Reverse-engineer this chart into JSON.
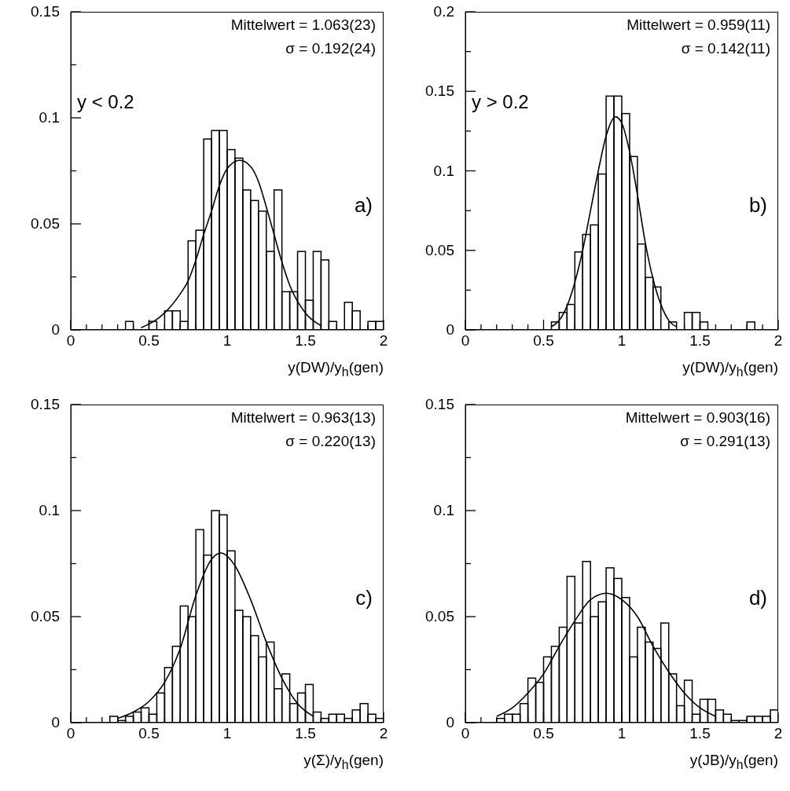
{
  "chart_data": [
    {
      "type": "histogram",
      "xlabel": "y(DW)/y$_{h}$(gen)",
      "annotations": [
        "Mittelwert = 1.063(23)",
        "σ = 0.192(24)",
        "y < 0.2",
        "a)"
      ],
      "bins": [
        0,
        0.05,
        0.1,
        0.15,
        0.2,
        0.25,
        0.3,
        0.35,
        0.4,
        0.45,
        0.5,
        0.55,
        0.6,
        0.65,
        0.7,
        0.75,
        0.8,
        0.85,
        0.9,
        0.95,
        1,
        1.05,
        1.1,
        1.15,
        1.2,
        1.25,
        1.3,
        1.35,
        1.4,
        1.45,
        1.5,
        1.55,
        1.6,
        1.65,
        1.7,
        1.75,
        1.8,
        1.85,
        1.9,
        1.95,
        2
      ],
      "series": [
        {
          "color": "#000000",
          "values": [
            0,
            0,
            0,
            0,
            0,
            0,
            0,
            0.004,
            0,
            0,
            0.004,
            0,
            0.009,
            0.009,
            0.004,
            0.042,
            0.047,
            0.09,
            0.094,
            0.094,
            0.085,
            0.081,
            0.066,
            0.061,
            0.056,
            0.037,
            0.066,
            0.018,
            0.018,
            0.037,
            0.014,
            0.037,
            0.033,
            0.004,
            0,
            0.013,
            0.009,
            0,
            0.004,
            0.004
          ]
        },
        {
          "type": "line",
          "color": "#000000",
          "x": [
            0.45,
            0.6,
            0.7,
            0.75,
            0.8,
            0.85,
            0.9,
            0.95,
            1.0,
            1.08,
            1.15,
            1.2,
            1.25,
            1.3,
            1.35,
            1.4,
            1.5,
            1.6
          ],
          "values": [
            0.001,
            0.008,
            0.017,
            0.023,
            0.033,
            0.045,
            0.056,
            0.068,
            0.076,
            0.08,
            0.077,
            0.07,
            0.058,
            0.045,
            0.032,
            0.021,
            0.008,
            0.002
          ]
        }
      ],
      "xlim": [
        0,
        2
      ],
      "xticks": [
        0,
        {
          "value": 0.1,
          "label": null
        },
        {
          "value": 0.2,
          "label": null
        },
        {
          "value": 0.3,
          "label": null
        },
        {
          "value": 0.4,
          "label": null
        },
        0.5,
        {
          "value": 0.6,
          "label": null
        },
        {
          "value": 0.7,
          "label": null
        },
        {
          "value": 0.8,
          "label": null
        },
        {
          "value": 0.9,
          "label": null
        },
        1,
        {
          "value": 1.1,
          "label": null
        },
        {
          "value": 1.2,
          "label": null
        },
        {
          "value": 1.3,
          "label": null
        },
        {
          "value": 1.4,
          "label": null
        },
        1.5,
        {
          "value": 1.6,
          "label": null
        },
        {
          "value": 1.7,
          "label": null
        },
        {
          "value": 1.8,
          "label": null
        },
        {
          "value": 1.9,
          "label": null
        },
        2
      ],
      "ylim": [
        0,
        0.15
      ],
      "yticks": [
        0,
        {
          "value": 0.025,
          "label": null
        },
        0.05,
        {
          "value": 0.075,
          "label": null
        },
        0.1,
        {
          "value": 0.125,
          "label": null
        },
        0.15
      ]
    },
    {
      "type": "histogram",
      "xlabel": "y(DW)/y$_{h}$(gen)",
      "annotations": [
        "Mittelwert = 0.959(11)",
        "σ = 0.142(11)",
        "y > 0.2",
        "b)"
      ],
      "bins": [
        0,
        0.05,
        0.1,
        0.15,
        0.2,
        0.25,
        0.3,
        0.35,
        0.4,
        0.45,
        0.5,
        0.55,
        0.6,
        0.65,
        0.7,
        0.75,
        0.8,
        0.85,
        0.9,
        0.95,
        1,
        1.05,
        1.1,
        1.15,
        1.2,
        1.25,
        1.3,
        1.35,
        1.4,
        1.45,
        1.5,
        1.55,
        1.6,
        1.65,
        1.7,
        1.75,
        1.8,
        1.85,
        1.9,
        1.95,
        2
      ],
      "series": [
        {
          "color": "#000000",
          "values": [
            0,
            0,
            0,
            0,
            0,
            0,
            0,
            0,
            0,
            0,
            0,
            0.005,
            0.011,
            0.016,
            0.049,
            0.06,
            0.066,
            0.098,
            0.147,
            0.147,
            0.136,
            0.109,
            0.054,
            0.033,
            0.027,
            0,
            0.005,
            0,
            0.011,
            0.011,
            0.005,
            0,
            0,
            0,
            0,
            0,
            0.005,
            0,
            0,
            0
          ]
        },
        {
          "type": "line",
          "color": "#000000",
          "x": [
            0.55,
            0.6,
            0.65,
            0.7,
            0.75,
            0.8,
            0.85,
            0.9,
            0.96,
            1.0,
            1.05,
            1.1,
            1.15,
            1.2,
            1.25,
            1.3,
            1.35
          ],
          "values": [
            0.002,
            0.006,
            0.015,
            0.03,
            0.05,
            0.075,
            0.1,
            0.122,
            0.134,
            0.13,
            0.112,
            0.085,
            0.055,
            0.032,
            0.016,
            0.006,
            0.002
          ]
        }
      ],
      "xlim": [
        0,
        2
      ],
      "xticks": [
        0,
        {
          "value": 0.1,
          "label": null
        },
        {
          "value": 0.2,
          "label": null
        },
        {
          "value": 0.3,
          "label": null
        },
        {
          "value": 0.4,
          "label": null
        },
        0.5,
        {
          "value": 0.6,
          "label": null
        },
        {
          "value": 0.7,
          "label": null
        },
        {
          "value": 0.8,
          "label": null
        },
        {
          "value": 0.9,
          "label": null
        },
        1,
        {
          "value": 1.1,
          "label": null
        },
        {
          "value": 1.2,
          "label": null
        },
        {
          "value": 1.3,
          "label": null
        },
        {
          "value": 1.4,
          "label": null
        },
        1.5,
        {
          "value": 1.6,
          "label": null
        },
        {
          "value": 1.7,
          "label": null
        },
        {
          "value": 1.8,
          "label": null
        },
        {
          "value": 1.9,
          "label": null
        },
        2
      ],
      "ylim": [
        0,
        0.2
      ],
      "yticks": [
        0,
        {
          "value": 0.025,
          "label": null
        },
        0.05,
        {
          "value": 0.075,
          "label": null
        },
        0.1,
        {
          "value": 0.125,
          "label": null
        },
        0.15,
        {
          "value": 0.175,
          "label": null
        },
        0.2
      ]
    },
    {
      "type": "histogram",
      "xlabel": "y(Σ)/y$_{h}$(gen)",
      "annotations": [
        "Mittelwert = 0.963(13)",
        "σ = 0.220(13)",
        "c)"
      ],
      "bins": [
        0,
        0.05,
        0.1,
        0.15,
        0.2,
        0.25,
        0.3,
        0.35,
        0.4,
        0.45,
        0.5,
        0.55,
        0.6,
        0.65,
        0.7,
        0.75,
        0.8,
        0.85,
        0.9,
        0.95,
        1,
        1.05,
        1.1,
        1.15,
        1.2,
        1.25,
        1.3,
        1.35,
        1.4,
        1.45,
        1.5,
        1.55,
        1.6,
        1.65,
        1.7,
        1.75,
        1.8,
        1.85,
        1.9,
        1.95,
        2
      ],
      "series": [
        {
          "color": "#000000",
          "values": [
            0,
            0,
            0,
            0,
            0,
            0.003,
            0.001,
            0.003,
            0.005,
            0.007,
            0.004,
            0.014,
            0.026,
            0.036,
            0.055,
            0.05,
            0.091,
            0.079,
            0.1,
            0.098,
            0.081,
            0.053,
            0.05,
            0.041,
            0.031,
            0.038,
            0.016,
            0.023,
            0.009,
            0.014,
            0.018,
            0.005,
            0.002,
            0.004,
            0.004,
            0.002,
            0.006,
            0.009,
            0.004,
            0.002
          ]
        },
        {
          "type": "line",
          "color": "#000000",
          "x": [
            0.3,
            0.4,
            0.5,
            0.6,
            0.7,
            0.8,
            0.9,
            0.96,
            1.05,
            1.15,
            1.25,
            1.35,
            1.45,
            1.55
          ],
          "values": [
            0.002,
            0.005,
            0.01,
            0.019,
            0.035,
            0.06,
            0.077,
            0.08,
            0.074,
            0.058,
            0.038,
            0.021,
            0.009,
            0.003
          ]
        }
      ],
      "xlim": [
        0,
        2
      ],
      "xticks": [
        0,
        {
          "value": 0.1,
          "label": null
        },
        {
          "value": 0.2,
          "label": null
        },
        {
          "value": 0.3,
          "label": null
        },
        {
          "value": 0.4,
          "label": null
        },
        0.5,
        {
          "value": 0.6,
          "label": null
        },
        {
          "value": 0.7,
          "label": null
        },
        {
          "value": 0.8,
          "label": null
        },
        {
          "value": 0.9,
          "label": null
        },
        1,
        {
          "value": 1.1,
          "label": null
        },
        {
          "value": 1.2,
          "label": null
        },
        {
          "value": 1.3,
          "label": null
        },
        {
          "value": 1.4,
          "label": null
        },
        1.5,
        {
          "value": 1.6,
          "label": null
        },
        {
          "value": 1.7,
          "label": null
        },
        {
          "value": 1.8,
          "label": null
        },
        {
          "value": 1.9,
          "label": null
        },
        2
      ],
      "ylim": [
        0,
        0.15
      ],
      "yticks": [
        0,
        {
          "value": 0.025,
          "label": null
        },
        0.05,
        {
          "value": 0.075,
          "label": null
        },
        0.1,
        {
          "value": 0.125,
          "label": null
        },
        0.15
      ]
    },
    {
      "type": "histogram",
      "xlabel": "y(JB)/y$_{h}$(gen)",
      "annotations": [
        "Mittelwert = 0.903(16)",
        "σ = 0.291(13)",
        "d)"
      ],
      "bins": [
        0,
        0.05,
        0.1,
        0.15,
        0.2,
        0.25,
        0.3,
        0.35,
        0.4,
        0.45,
        0.5,
        0.55,
        0.6,
        0.65,
        0.7,
        0.75,
        0.8,
        0.85,
        0.9,
        0.95,
        1,
        1.05,
        1.1,
        1.15,
        1.2,
        1.25,
        1.3,
        1.35,
        1.4,
        1.45,
        1.5,
        1.55,
        1.6,
        1.65,
        1.7,
        1.75,
        1.8,
        1.85,
        1.9,
        1.95,
        2
      ],
      "series": [
        {
          "color": "#000000",
          "values": [
            0,
            0,
            0,
            0,
            0.002,
            0.004,
            0.004,
            0.009,
            0.021,
            0.019,
            0.031,
            0.036,
            0.045,
            0.069,
            0.047,
            0.076,
            0.05,
            0.057,
            0.073,
            0.068,
            0.059,
            0.031,
            0.045,
            0.038,
            0.035,
            0.047,
            0.023,
            0.008,
            0.02,
            0.004,
            0.011,
            0.011,
            0.006,
            0.004,
            0.001,
            0.001,
            0.003,
            0.003,
            0.003,
            0.006
          ]
        },
        {
          "type": "line",
          "color": "#000000",
          "x": [
            0.2,
            0.3,
            0.4,
            0.5,
            0.6,
            0.7,
            0.8,
            0.9,
            1.0,
            1.1,
            1.2,
            1.3,
            1.4,
            1.5,
            1.6
          ],
          "values": [
            0.003,
            0.007,
            0.014,
            0.023,
            0.036,
            0.048,
            0.058,
            0.061,
            0.058,
            0.05,
            0.036,
            0.024,
            0.014,
            0.007,
            0.003
          ]
        }
      ],
      "xlim": [
        0,
        2
      ],
      "xticks": [
        0,
        {
          "value": 0.1,
          "label": null
        },
        {
          "value": 0.2,
          "label": null
        },
        {
          "value": 0.3,
          "label": null
        },
        {
          "value": 0.4,
          "label": null
        },
        0.5,
        {
          "value": 0.6,
          "label": null
        },
        {
          "value": 0.7,
          "label": null
        },
        {
          "value": 0.8,
          "label": null
        },
        {
          "value": 0.9,
          "label": null
        },
        1,
        {
          "value": 1.1,
          "label": null
        },
        {
          "value": 1.2,
          "label": null
        },
        {
          "value": 1.3,
          "label": null
        },
        {
          "value": 1.4,
          "label": null
        },
        1.5,
        {
          "value": 1.6,
          "label": null
        },
        {
          "value": 1.7,
          "label": null
        },
        {
          "value": 1.8,
          "label": null
        },
        {
          "value": 1.9,
          "label": null
        },
        2
      ],
      "ylim": [
        0,
        0.15
      ],
      "yticks": [
        0,
        {
          "value": 0.025,
          "label": null
        },
        0.05,
        {
          "value": 0.075,
          "label": null
        },
        0.1,
        {
          "value": 0.125,
          "label": null
        },
        0.15
      ]
    }
  ]
}
